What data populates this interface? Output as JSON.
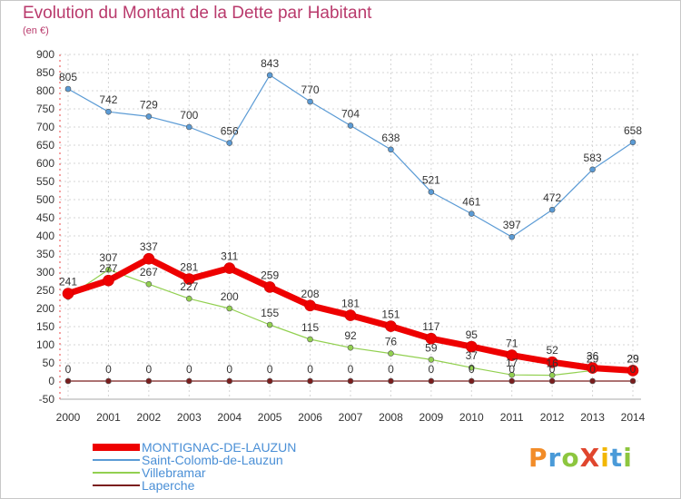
{
  "header": {
    "title": "Evolution du Montant de la Dette par Habitant",
    "subtitle": "(en €)"
  },
  "logo": {
    "text": "ProXiti",
    "colors": [
      "#f28c28",
      "#4a9ad8",
      "#8dc63f",
      "#e0462e",
      "#f2b705",
      "#4a9ad8",
      "#8dc63f"
    ]
  },
  "chart_data": {
    "type": "line",
    "title": "Evolution du Montant de la Dette par Habitant",
    "subtitle": "(en €)",
    "xlabel": "",
    "ylabel": "",
    "x": [
      "2000",
      "2001",
      "2002",
      "2003",
      "2004",
      "2005",
      "2006",
      "2007",
      "2008",
      "2009",
      "2010",
      "2011",
      "2012",
      "2013",
      "2014"
    ],
    "ylim": [
      -50,
      900
    ],
    "yticks": [
      -50,
      0,
      50,
      100,
      150,
      200,
      250,
      300,
      350,
      400,
      450,
      500,
      550,
      600,
      650,
      700,
      750,
      800,
      850,
      900
    ],
    "grid": true,
    "legend_position": "bottom-left",
    "series": [
      {
        "name": "Saint-Colomb-de-Lauzun",
        "color": "#5b9bd5",
        "values": [
          805,
          742,
          729,
          700,
          656,
          843,
          770,
          704,
          638,
          521,
          461,
          397,
          472,
          583,
          658
        ],
        "labels": [
          "805",
          "742",
          "729",
          "700",
          "656",
          "843",
          "770",
          "704",
          "638",
          "521",
          "461",
          "397",
          "472",
          "583",
          "658"
        ]
      },
      {
        "name": "Villebramar",
        "color": "#92d050",
        "values": [
          232,
          307,
          267,
          227,
          200,
          155,
          115,
          92,
          76,
          59,
          37,
          17,
          16,
          29,
          29
        ],
        "labels": [
          "",
          "307",
          "267",
          "227",
          "200",
          "155",
          "115",
          "92",
          "76",
          "59",
          "37",
          "17",
          "16",
          "29",
          "29"
        ]
      },
      {
        "name": "MONTIGNAC-DE-LAUZUN",
        "color": "#ee0000",
        "values": [
          241,
          277,
          337,
          281,
          311,
          259,
          208,
          181,
          151,
          117,
          95,
          71,
          52,
          36,
          29
        ],
        "labels": [
          "241",
          "277",
          "337",
          "281",
          "311",
          "259",
          "208",
          "181",
          "151",
          "117",
          "95",
          "71",
          "52",
          "36",
          "29"
        ]
      },
      {
        "name": "Laperche",
        "color": "#7a1e1e",
        "values": [
          0,
          0,
          0,
          0,
          0,
          0,
          0,
          0,
          0,
          0,
          0,
          0,
          0,
          0,
          0
        ],
        "labels": [
          "0",
          "0",
          "0",
          "0",
          "0",
          "0",
          "0",
          "0",
          "0",
          "0",
          "0",
          "0",
          "0",
          "0",
          "0"
        ]
      }
    ]
  },
  "legend": {
    "items": [
      {
        "label": "MONTIGNAC-DE-LAUZUN",
        "color": "#ee0000"
      },
      {
        "label": "Saint-Colomb-de-Lauzun",
        "color": "#5b9bd5"
      },
      {
        "label": "Villebramar",
        "color": "#92d050"
      },
      {
        "label": "Laperche",
        "color": "#7a1e1e"
      }
    ]
  }
}
